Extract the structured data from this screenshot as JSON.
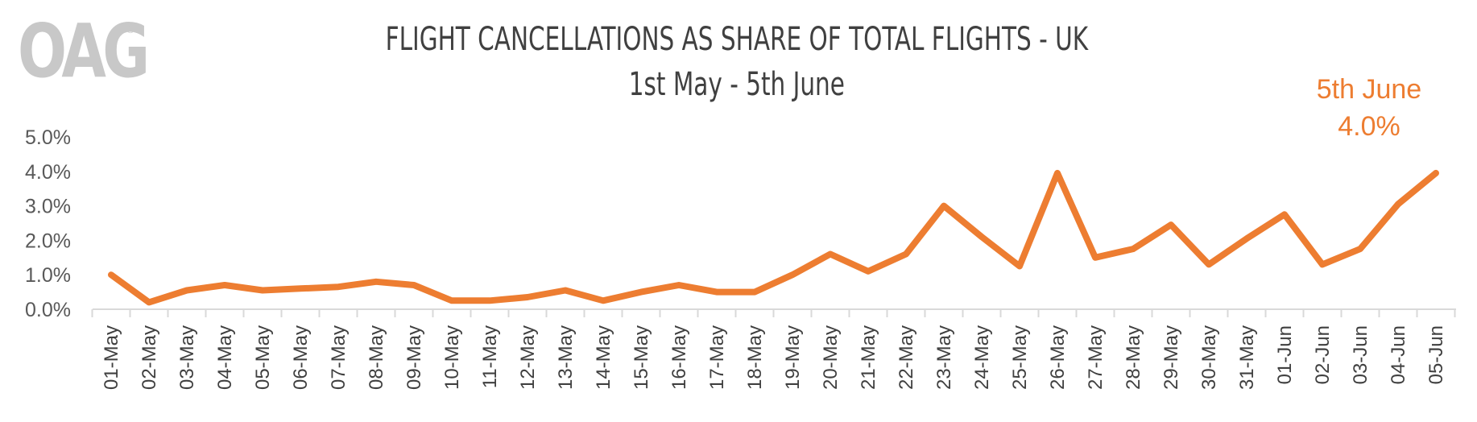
{
  "logo": {
    "text": "OAG",
    "reg": "®"
  },
  "annotation": {
    "date": "5th June",
    "value": "4.0%"
  },
  "colors": {
    "line": "#ed7d31",
    "axis": "#d9d9d9",
    "title": "#404040",
    "logo": "#c8c8c8"
  },
  "chart_data": {
    "type": "line",
    "title": "FLIGHT CANCELLATIONS AS SHARE OF TOTAL FLIGHTS - UK",
    "subtitle": "1st May - 5th June",
    "xlabel": "",
    "ylabel": "",
    "ylim": [
      0,
      5
    ],
    "yticks": [
      0,
      1,
      2,
      3,
      4,
      5
    ],
    "ytick_labels": [
      "0.0%",
      "1.0%",
      "2.0%",
      "3.0%",
      "4.0%",
      "5.0%"
    ],
    "grid": false,
    "categories": [
      "01-May",
      "02-May",
      "03-May",
      "04-May",
      "05-May",
      "06-May",
      "07-May",
      "08-May",
      "09-May",
      "10-May",
      "11-May",
      "12-May",
      "13-May",
      "14-May",
      "15-May",
      "16-May",
      "17-May",
      "18-May",
      "19-May",
      "20-May",
      "21-May",
      "22-May",
      "23-May",
      "24-May",
      "25-May",
      "26-May",
      "27-May",
      "28-May",
      "29-May",
      "30-May",
      "31-May",
      "01-Jun",
      "02-Jun",
      "03-Jun",
      "04-Jun",
      "05-Jun"
    ],
    "series": [
      {
        "values": [
          1.0,
          0.2,
          0.55,
          0.7,
          0.55,
          0.6,
          0.65,
          0.8,
          0.7,
          0.25,
          0.25,
          0.35,
          0.55,
          0.25,
          0.5,
          0.7,
          0.5,
          0.5,
          1.0,
          1.6,
          1.1,
          1.6,
          3.0,
          2.1,
          1.25,
          3.95,
          1.5,
          1.75,
          2.45,
          1.3,
          2.05,
          2.75,
          1.3,
          1.75,
          3.05,
          3.95
        ]
      }
    ]
  }
}
